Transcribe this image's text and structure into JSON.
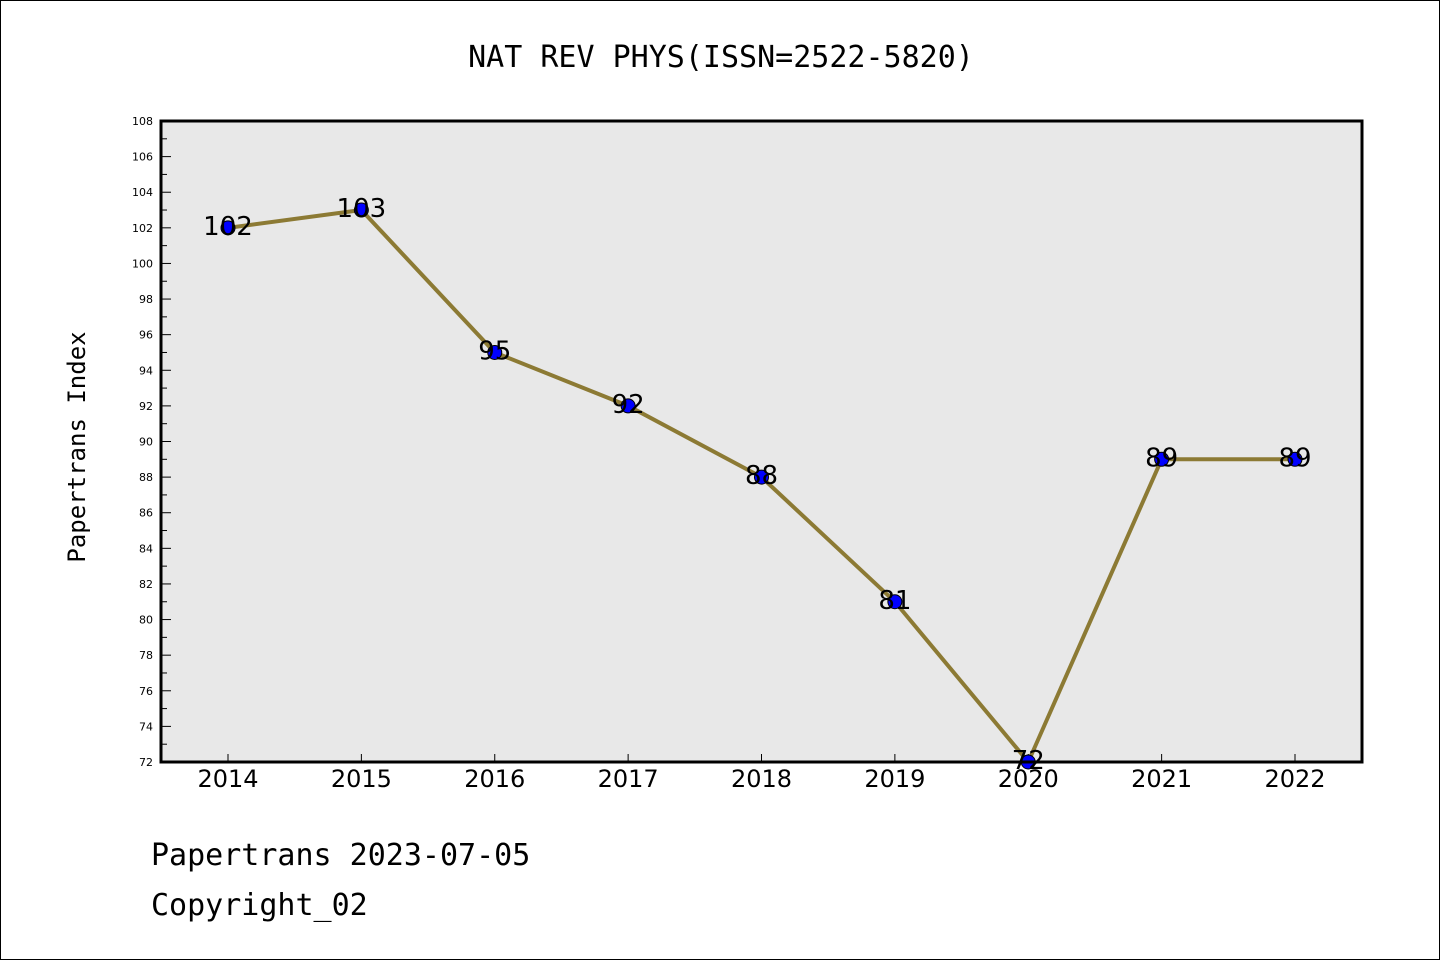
{
  "chart_data": {
    "type": "line",
    "title": "NAT REV PHYS(ISSN=2522-5820)",
    "xlabel": "",
    "ylabel": "Papertrans Index",
    "categories": [
      "2014",
      "2015",
      "2016",
      "2017",
      "2018",
      "2019",
      "2020",
      "2021",
      "2022"
    ],
    "values": [
      102,
      103,
      95,
      92,
      88,
      81,
      72,
      89,
      89
    ],
    "data_labels": [
      "102",
      "103",
      "95",
      "92",
      "88",
      "81",
      "72",
      "89",
      "89"
    ],
    "ylim": [
      72,
      108
    ],
    "ytick_step": 2,
    "grid": false,
    "legend": "none",
    "line_color": "#8c7a34",
    "marker_color": "#0000ff",
    "plot_background": "#e8e8e8"
  },
  "footer": {
    "line1": "Papertrans 2023-07-05",
    "line2": "Copyright_02"
  }
}
